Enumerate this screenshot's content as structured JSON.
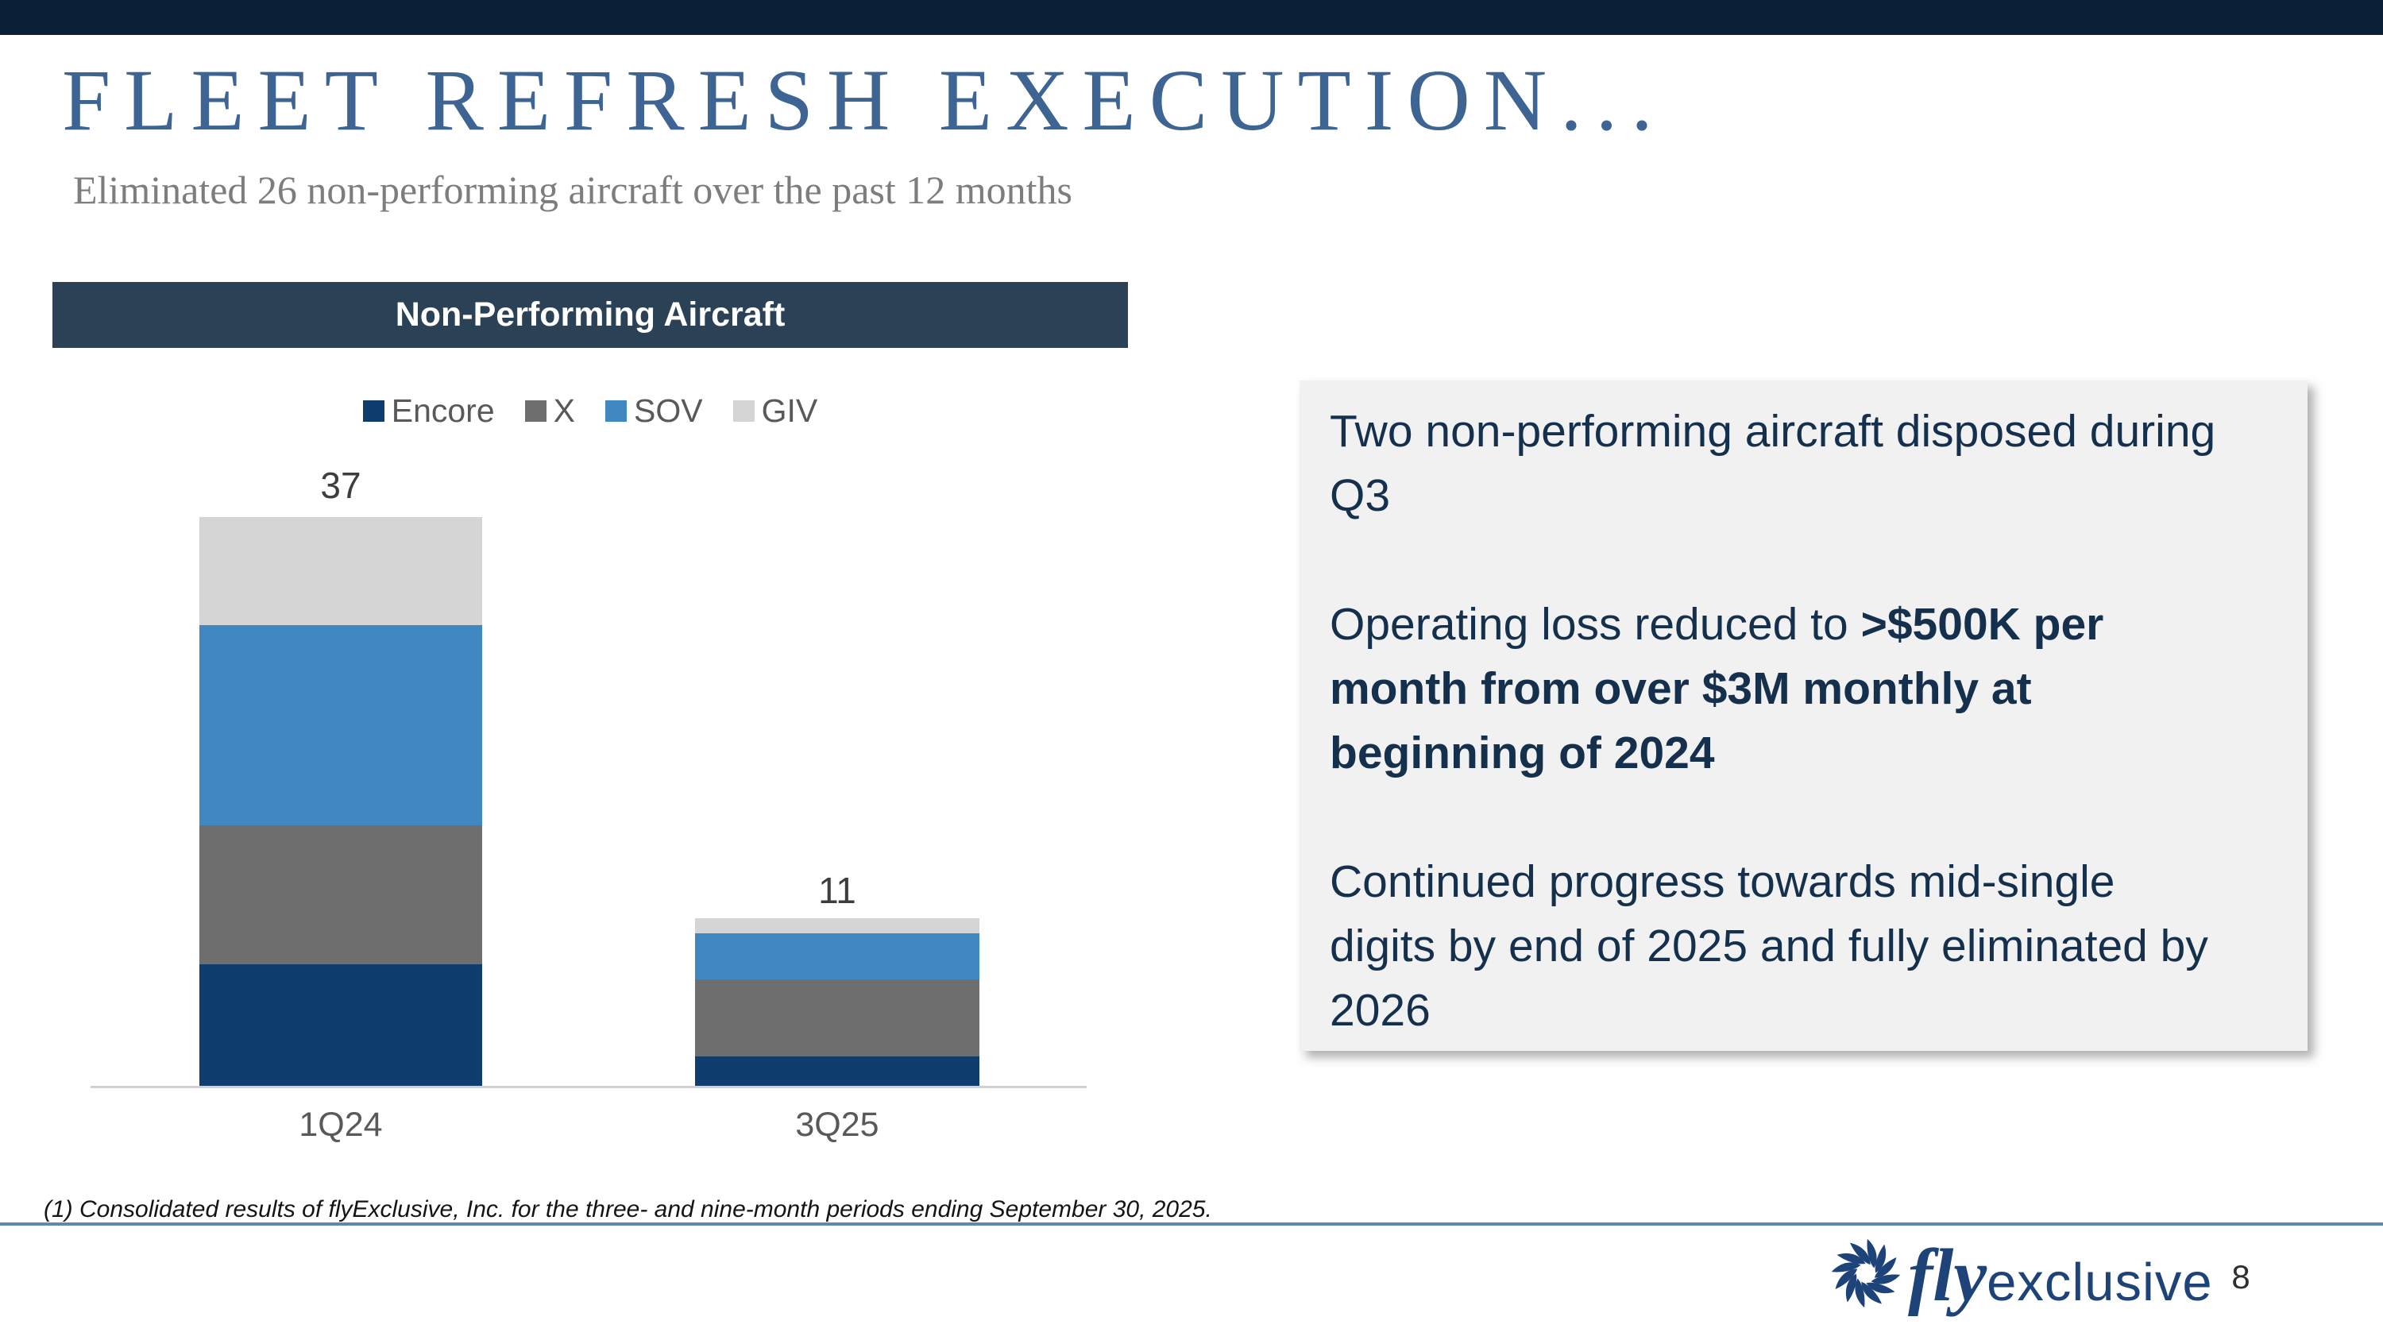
{
  "colors": {
    "top_bar": "#0a2036",
    "title_blue": "#3d6493",
    "subtitle_gray": "#7d7d7d",
    "chart_header_bg": "#2b4156",
    "divider_blue": "#5f87b2",
    "logo_navy": "#1d4379",
    "callout_bg": "#f1f1f1",
    "callout_text": "#15304d"
  },
  "header": {
    "title": "FLEET REFRESH EXECUTION...",
    "subtitle": "Eliminated 26 non-performing aircraft over the past 12 months"
  },
  "chart_data": {
    "type": "bar",
    "stacked": true,
    "title": "Non-Performing Aircraft",
    "categories": [
      "1Q24",
      "3Q25"
    ],
    "series": [
      {
        "name": "Encore",
        "color": "#0f3d6e",
        "values": [
          8,
          2
        ]
      },
      {
        "name": "X",
        "color": "#6e6e6e",
        "values": [
          9,
          5
        ]
      },
      {
        "name": "SOV",
        "color": "#4187c1",
        "values": [
          13,
          3
        ]
      },
      {
        "name": "GIV",
        "color": "#d5d5d5",
        "values": [
          7,
          1
        ]
      }
    ],
    "totals": [
      37,
      11
    ],
    "legend_position": "top",
    "ylim": [
      0,
      40
    ],
    "gridlines": false,
    "ylabel": "",
    "xlabel": ""
  },
  "callout": {
    "p1": "Two non-performing aircraft disposed during Q3",
    "p2_normal": "Operating loss reduced to ",
    "p2_bold": ">$500K per month from over $3M monthly at beginning of 2024",
    "p3": "Continued progress towards mid-single digits by end of 2025 and fully eliminated by 2026"
  },
  "footer": {
    "note": "(1) Consolidated results of flyExclusive, Inc. for the three- and nine-month periods ending September 30, 2025.",
    "logo_fly": "fly",
    "logo_exclusive": "exclusive",
    "page_number": "8"
  }
}
